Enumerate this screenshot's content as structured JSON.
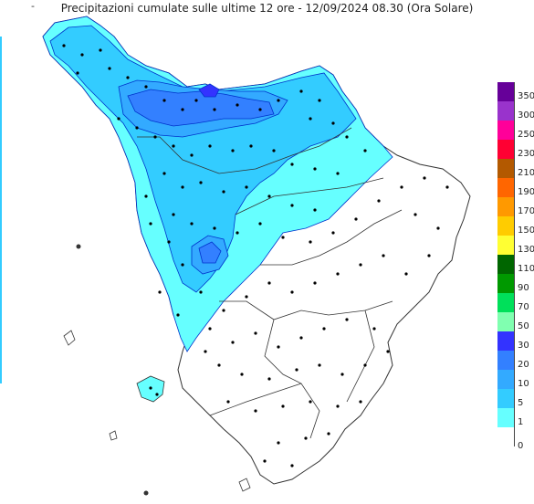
{
  "title": "Precipitazioni cumulate sulle ultime 12 ore - 12/09/2024 08.30 (Ora Solare)",
  "corner_mark": "-",
  "legend": {
    "bands": [
      {
        "label": "350",
        "color": "#660099"
      },
      {
        "label": "300",
        "color": "#9933cc"
      },
      {
        "label": "250",
        "color": "#ff0099"
      },
      {
        "label": "230",
        "color": "#ff0033"
      },
      {
        "label": "210",
        "color": "#b35900"
      },
      {
        "label": "190",
        "color": "#ff6600"
      },
      {
        "label": "170",
        "color": "#ff9900"
      },
      {
        "label": "150",
        "color": "#ffcc00"
      },
      {
        "label": "130",
        "color": "#ffff33"
      },
      {
        "label": "110",
        "color": "#006600"
      },
      {
        "label": "90",
        "color": "#009900"
      },
      {
        "label": "70",
        "color": "#00e05a"
      },
      {
        "label": "50",
        "color": "#80ffb0"
      },
      {
        "label": "30",
        "color": "#3333ff"
      },
      {
        "label": "20",
        "color": "#3380ff"
      },
      {
        "label": "10",
        "color": "#33aaff"
      },
      {
        "label": "5",
        "color": "#33ccff"
      },
      {
        "label": "1",
        "color": "#66ffff"
      },
      {
        "label": "",
        "color": "#ffffff"
      }
    ],
    "bottom_label": "0"
  },
  "colors": {
    "light": "#66ffff",
    "mid": "#33ccff",
    "blue10": "#33aaff",
    "blue20": "#3380ff",
    "blue30": "#3333ff",
    "boundary": "#333333",
    "contour": "#0033cc"
  }
}
